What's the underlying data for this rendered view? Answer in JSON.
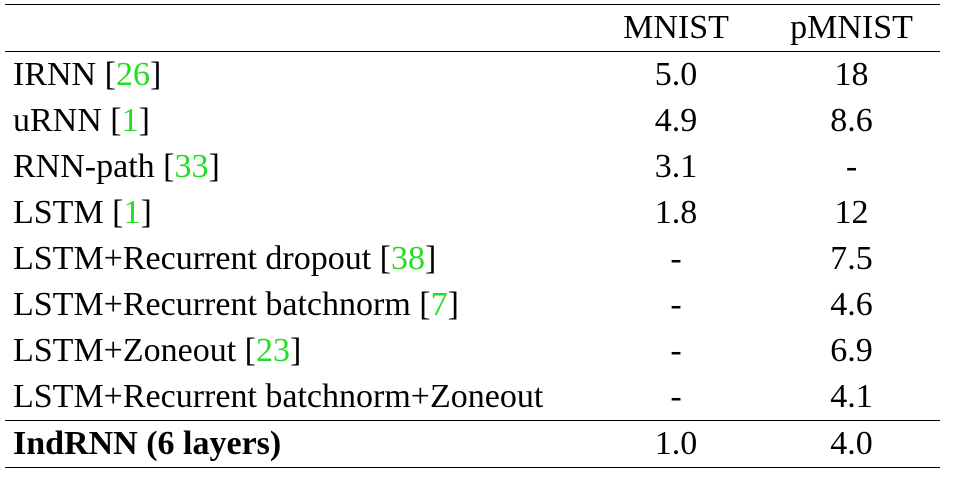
{
  "table": {
    "columns": [
      "MNIST",
      "pMNIST"
    ],
    "rows": [
      {
        "label": [
          "IRNN [",
          "26",
          "]"
        ],
        "values": [
          "5.0",
          "18"
        ]
      },
      {
        "label": [
          "uRNN [",
          "1",
          "]"
        ],
        "values": [
          "4.9",
          "8.6"
        ]
      },
      {
        "label": [
          "RNN-path [",
          "33",
          "]"
        ],
        "values": [
          "3.1",
          "-"
        ]
      },
      {
        "label": [
          "LSTM [",
          "1",
          "]"
        ],
        "values": [
          "1.8",
          "12"
        ]
      },
      {
        "label": [
          "LSTM+Recurrent dropout [",
          "38",
          "]"
        ],
        "values": [
          "-",
          "7.5"
        ]
      },
      {
        "label": [
          "LSTM+Recurrent batchnorm [",
          "7",
          "]"
        ],
        "values": [
          "-",
          "4.6"
        ]
      },
      {
        "label": [
          "LSTM+Zoneout [",
          "23",
          "]"
        ],
        "values": [
          "-",
          "6.9"
        ]
      },
      {
        "label": [
          "LSTM+Recurrent batchnorm+Zoneout"
        ],
        "values": [
          "-",
          "4.1"
        ]
      },
      {
        "label": [
          "IndRNN (6 layers)"
        ],
        "values": [
          "1.0",
          "4.0"
        ]
      }
    ]
  }
}
